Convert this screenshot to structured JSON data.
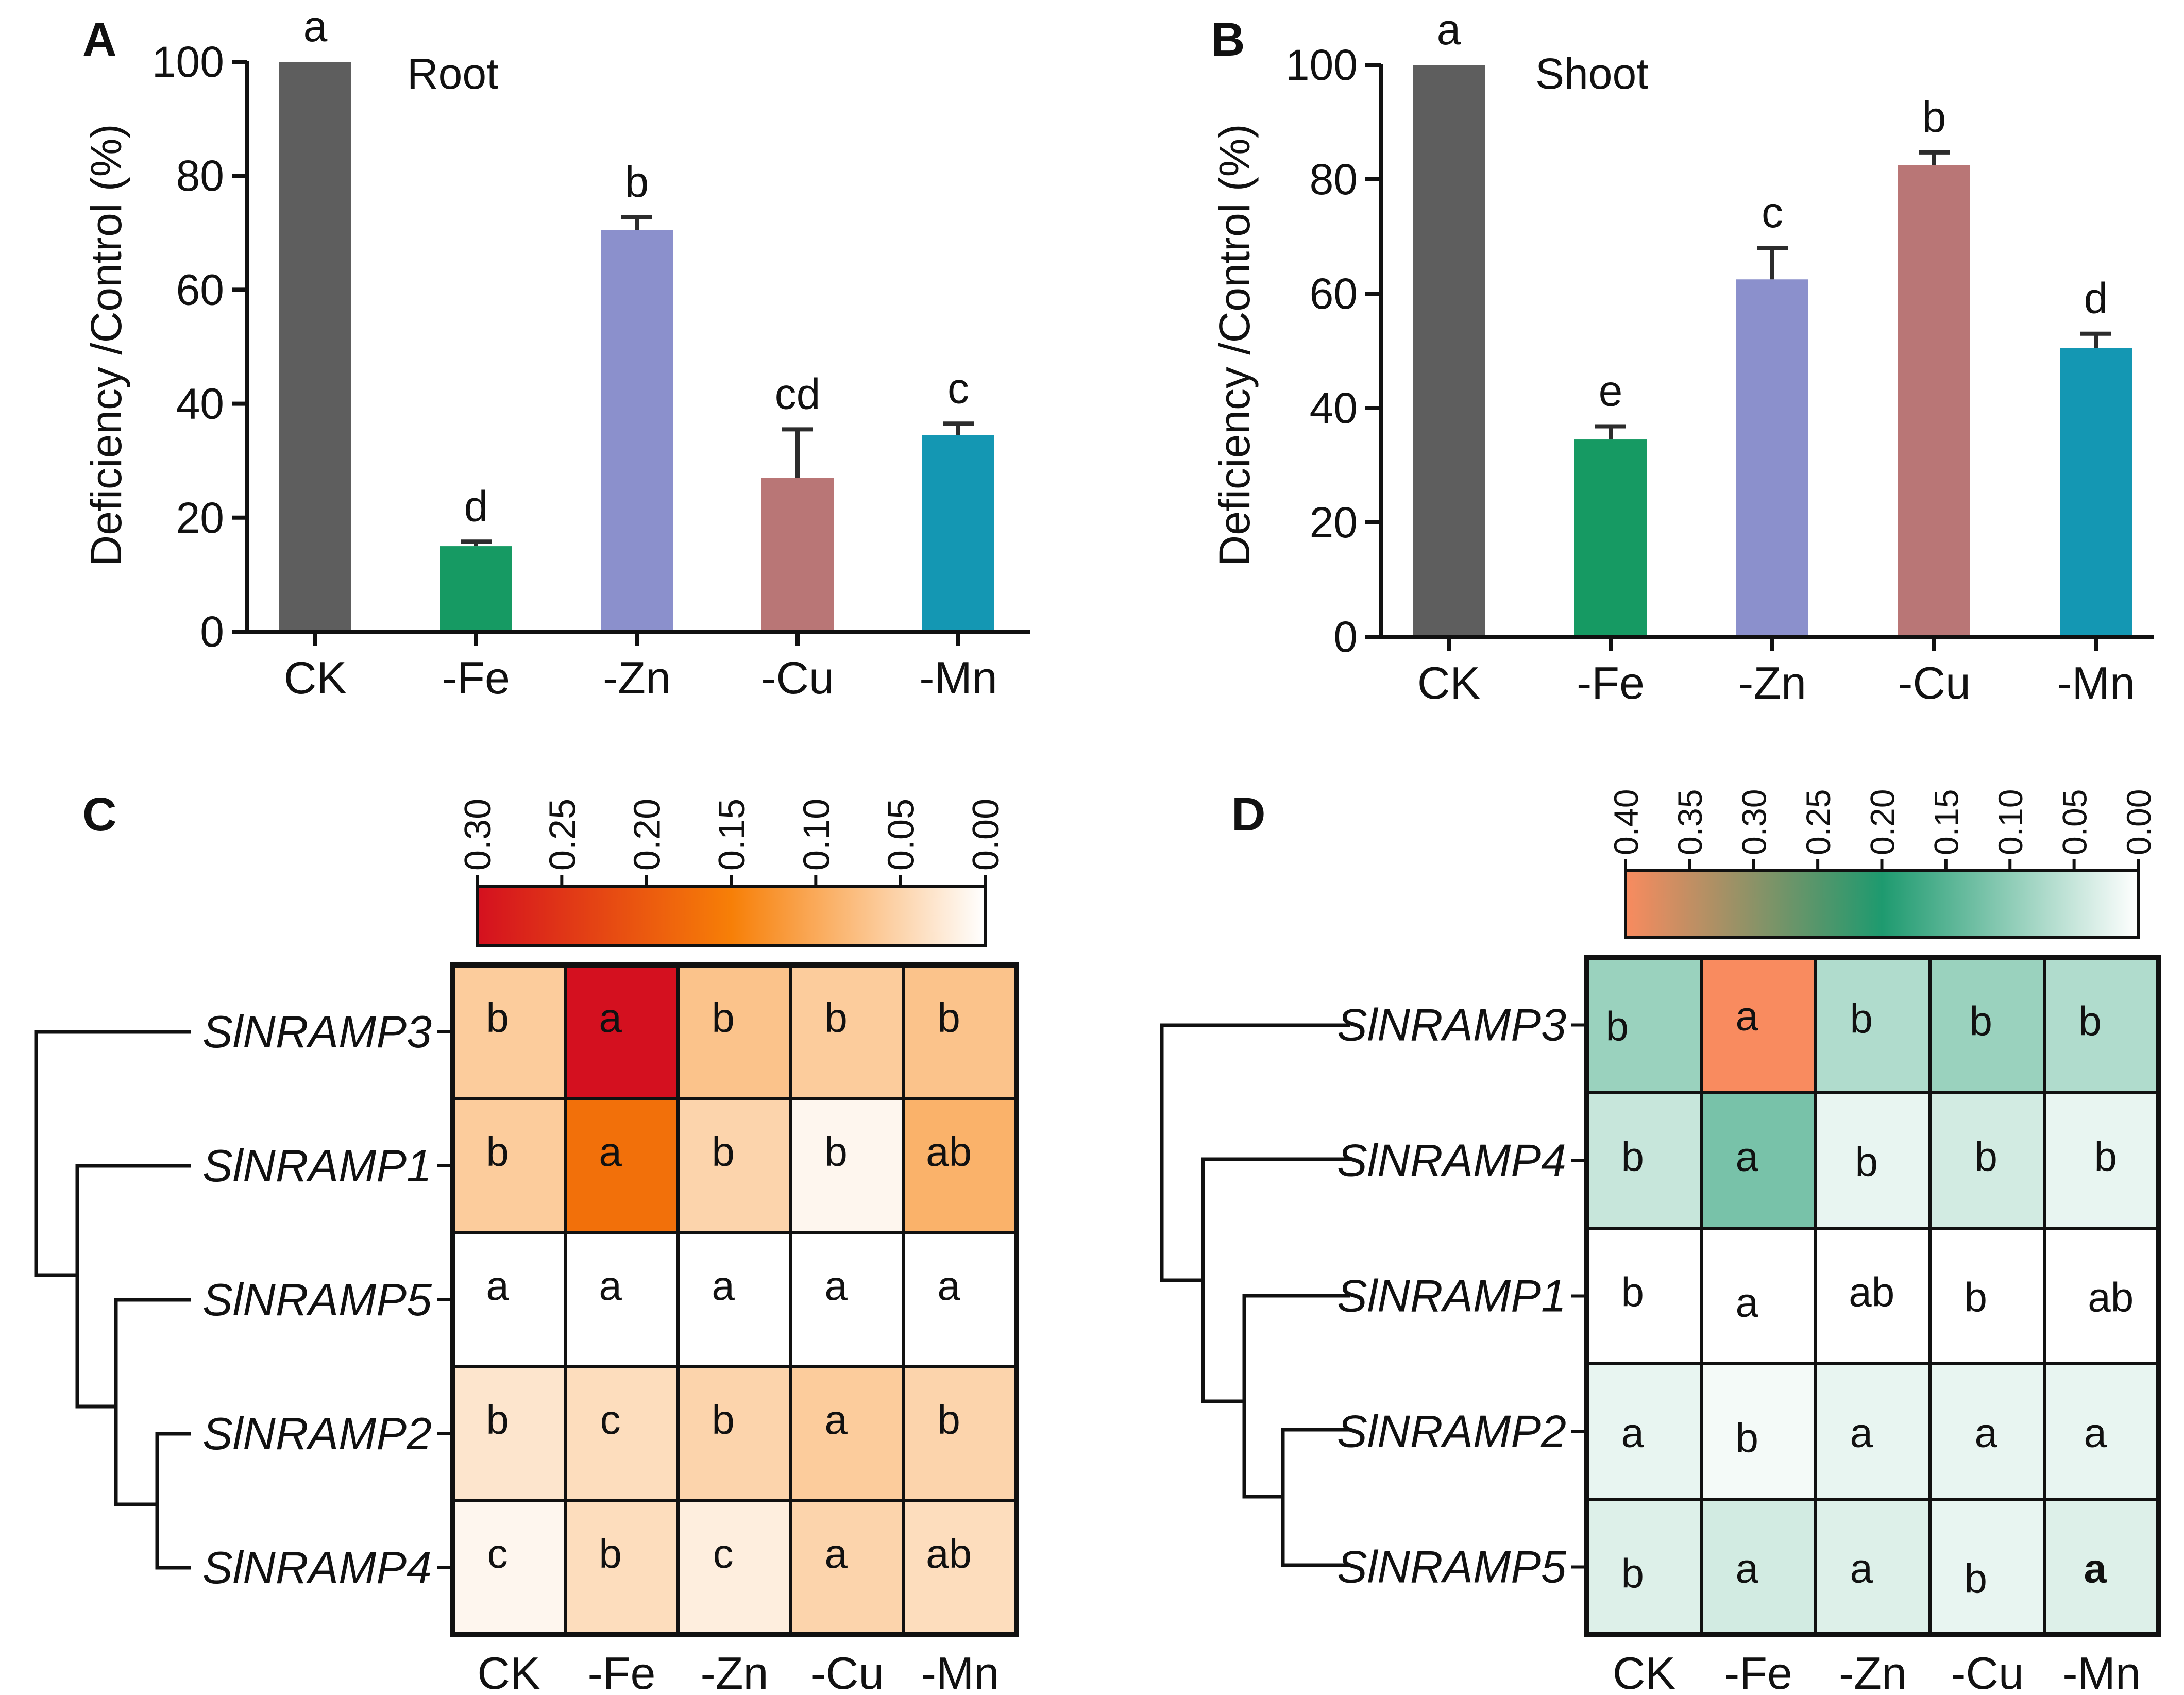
{
  "chart_data": [
    {
      "panel": "A",
      "type": "bar",
      "title": "Root",
      "ylabel": "Deficiency /Control (%)",
      "xlabel": "",
      "ylim": [
        0,
        100
      ],
      "yticks": [
        0,
        20,
        40,
        60,
        80,
        100
      ],
      "categories": [
        "CK",
        "-Fe",
        "-Zn",
        "-Cu",
        "-Mn"
      ],
      "values": [
        100,
        15,
        70.5,
        27,
        34.5
      ],
      "errors": [
        0,
        0.8,
        2.2,
        8.5,
        2
      ],
      "letters": [
        "a",
        "d",
        "b",
        "cd",
        "c"
      ],
      "colors": [
        "#5e5e5e",
        "#169a63",
        "#8b90cc",
        "#b97676",
        "#1497b3"
      ]
    },
    {
      "panel": "B",
      "type": "bar",
      "title": "Shoot",
      "ylabel": "Deficiency /Control (%)",
      "xlabel": "",
      "ylim": [
        0,
        100
      ],
      "yticks": [
        0,
        20,
        40,
        60,
        80,
        100
      ],
      "categories": [
        "CK",
        "-Fe",
        "-Zn",
        "-Cu",
        "-Mn"
      ],
      "values": [
        100,
        34.5,
        62.5,
        82.5,
        50.5
      ],
      "errors": [
        0,
        2.3,
        5.5,
        2.2,
        2.5
      ],
      "letters": [
        "a",
        "e",
        "c",
        "b",
        "d"
      ],
      "colors": [
        "#5e5e5e",
        "#169a63",
        "#8b90cc",
        "#b97676",
        "#1497b3"
      ]
    },
    {
      "panel": "C",
      "type": "heatmap",
      "columns": [
        "CK",
        "-Fe",
        "-Zn",
        "-Cu",
        "-Mn"
      ],
      "rows": [
        "SlNRAMP3",
        "SlNRAMP1",
        "SlNRAMP5",
        "SlNRAMP2",
        "SlNRAMP4"
      ],
      "values": [
        [
          0.06,
          0.3,
          0.07,
          0.06,
          0.07
        ],
        [
          0.06,
          0.17,
          0.05,
          0.01,
          0.09
        ],
        [
          0.0,
          0.0,
          0.0,
          0.0,
          0.0
        ],
        [
          0.03,
          0.04,
          0.05,
          0.06,
          0.05
        ],
        [
          0.01,
          0.04,
          0.02,
          0.05,
          0.04
        ]
      ],
      "letters": [
        [
          "b",
          "a",
          "b",
          "b",
          "b"
        ],
        [
          "b",
          "a",
          "b",
          "b",
          "ab"
        ],
        [
          "a",
          "a",
          "a",
          "a",
          "a"
        ],
        [
          "b",
          "c",
          "b",
          "a",
          "b"
        ],
        [
          "c",
          "b",
          "c",
          "a",
          "ab"
        ]
      ],
      "colorbar_range": [
        0.3,
        0.0
      ],
      "colorbar_ticks": [
        "0.30",
        "0.25",
        "0.20",
        "0.15",
        "0.10",
        "0.05",
        "0.00"
      ],
      "colorbar_colors": [
        "#d4101f",
        "#f77f07",
        "#ffffff"
      ]
    },
    {
      "panel": "D",
      "type": "heatmap",
      "columns": [
        "CK",
        "-Fe",
        "-Zn",
        "-Cu",
        "-Mn"
      ],
      "rows": [
        "SlNRAMP3",
        "SlNRAMP4",
        "SlNRAMP1",
        "SlNRAMP2",
        "SlNRAMP5"
      ],
      "values": [
        [
          0.09,
          0.4,
          0.07,
          0.09,
          0.07
        ],
        [
          0.05,
          0.12,
          0.02,
          0.04,
          0.02
        ],
        [
          0.0,
          0.0,
          0.0,
          0.0,
          0.0
        ],
        [
          0.02,
          0.01,
          0.02,
          0.02,
          0.02
        ],
        [
          0.03,
          0.04,
          0.03,
          0.02,
          0.03
        ]
      ],
      "letters": [
        [
          "b",
          "a",
          "b",
          "b",
          "b"
        ],
        [
          "b",
          "a",
          "b",
          "b",
          "b"
        ],
        [
          "b",
          "a",
          "ab",
          "b",
          "ab"
        ],
        [
          "a",
          "b",
          "a",
          "a",
          "a"
        ],
        [
          "b",
          "a",
          "a",
          "b",
          "a"
        ]
      ],
      "colorbar_range": [
        0.4,
        0.0
      ],
      "colorbar_ticks": [
        "0.40",
        "0.35",
        "0.30",
        "0.25",
        "0.20",
        "0.15",
        "0.10",
        "0.05",
        "0.00"
      ],
      "colorbar_colors": [
        "#f98b5f",
        "#1e9a6f",
        "#ffffff"
      ]
    }
  ],
  "panel_labels": [
    "A",
    "B",
    "C",
    "D"
  ]
}
